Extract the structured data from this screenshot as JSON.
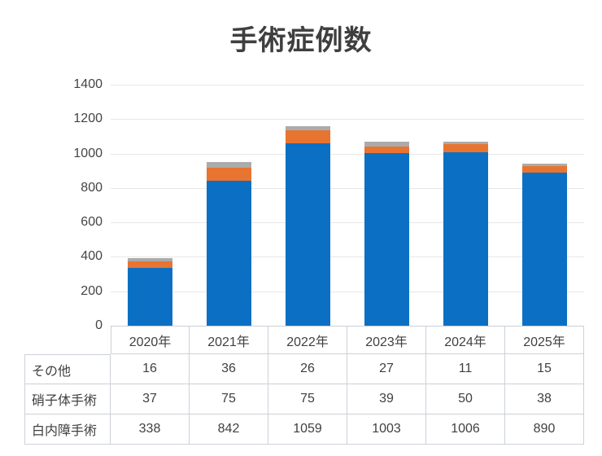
{
  "page": {
    "background": "#FFFFFF"
  },
  "chart_data": {
    "type": "bar",
    "stacked": true,
    "title": "手術症例数",
    "categories": [
      "2020年",
      "2021年",
      "2022年",
      "2023年",
      "2024年",
      "2025年"
    ],
    "series": [
      {
        "name": "白内障手術",
        "key": "cataract-surgery",
        "color": "#0B70C4",
        "values": [
          338,
          842,
          1059,
          1003,
          1006,
          890
        ]
      },
      {
        "name": "硝子体手術",
        "key": "vitreous-surgery",
        "color": "#E87431",
        "values": [
          37,
          75,
          75,
          39,
          50,
          38
        ]
      },
      {
        "name": "その他",
        "key": "other",
        "color": "#ABABAB",
        "values": [
          16,
          36,
          26,
          27,
          11,
          15
        ]
      }
    ],
    "ylim": [
      0,
      1400
    ],
    "yticks": [
      0,
      200,
      400,
      600,
      800,
      1000,
      1200,
      1400
    ],
    "grid": true,
    "legend_position": "none",
    "data_table": {
      "corner_label": "",
      "header": [
        "2020年",
        "2021年",
        "2022年",
        "2023年",
        "2024年",
        "2025年"
      ],
      "rows": [
        {
          "label": "その他",
          "values": [
            16,
            36,
            26,
            27,
            11,
            15
          ]
        },
        {
          "label": "硝子体手術",
          "values": [
            37,
            75,
            75,
            39,
            50,
            38
          ]
        },
        {
          "label": "白内障手術",
          "values": [
            338,
            842,
            1059,
            1003,
            1006,
            890
          ]
        }
      ]
    }
  },
  "style": {
    "grid_color": "#E7E7E7",
    "table_border_color": "#CCD1D7",
    "text_color": "#404040",
    "axis_label_color": "#444444",
    "title_color": "#3F3F3F"
  }
}
